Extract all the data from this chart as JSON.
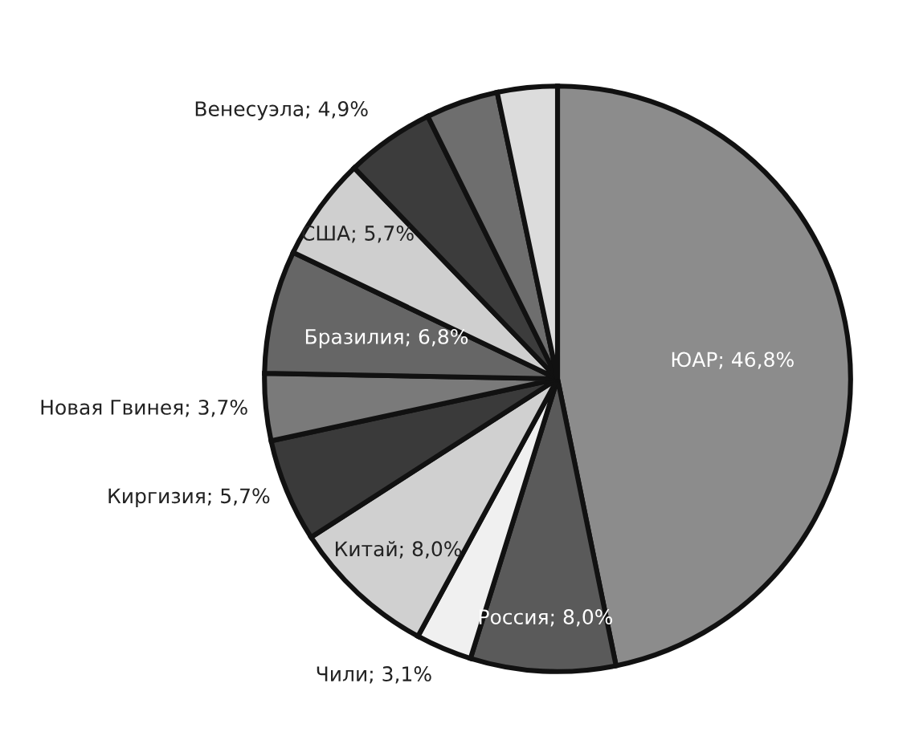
{
  "chart_data": {
    "type": "pie",
    "categories": [
      "ЮАР",
      "Россия",
      "Чили",
      "Китай",
      "Киргизия",
      "Новая Гвинея",
      "Бразилия",
      "США",
      "Венесуэла",
      null,
      null
    ],
    "values": [
      46.8,
      8.0,
      3.1,
      8.0,
      5.7,
      3.7,
      6.8,
      5.7,
      4.9,
      4.0,
      3.3
    ],
    "value_labels": [
      "46,8%",
      "8,0%",
      "3,1%",
      "8,0%",
      "5,7%",
      "3,7%",
      "6,8%",
      "5,7%",
      "4,9%",
      null,
      null
    ],
    "colors": [
      "#8c8c8c",
      "#5a5a5a",
      "#f0f0f0",
      "#d0d0d0",
      "#3a3a3a",
      "#7a7a7a",
      "#666666",
      "#cfcfcf",
      "#3c3c3c",
      "#6e6e6e",
      "#dcdcdc"
    ],
    "legend": false
  }
}
